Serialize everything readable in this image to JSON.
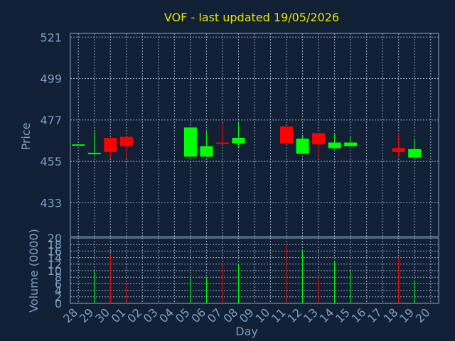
{
  "chart_data": [
    {
      "type": "candlestick",
      "title": "VOF - last updated 19/05/2026",
      "ylabel": "Price",
      "xlabel": "Day",
      "ylim": [
        415,
        523
      ],
      "yticks": [
        521,
        499,
        477,
        455,
        433
      ],
      "grid": true,
      "colors": {
        "up": "#00ff00",
        "down": "#ff0000",
        "background": "#112035",
        "text": "#7c9fc4",
        "title": "#e6e600"
      },
      "x": [
        "28",
        "29",
        "30",
        "01",
        "02",
        "03",
        "04",
        "05",
        "06",
        "07",
        "08",
        "09",
        "10",
        "11",
        "12",
        "13",
        "14",
        "15",
        "16",
        "17",
        "18",
        "19",
        "20"
      ],
      "candles": [
        {
          "day": "28",
          "open": 464.0,
          "high": 464.0,
          "low": 464.0,
          "close": 464.0
        },
        {
          "day": "29",
          "open": 459.0,
          "high": 471.0,
          "low": 458.5,
          "close": 459.5
        },
        {
          "day": "30",
          "open": 467.5,
          "high": 467.5,
          "low": 456.5,
          "close": 460.0
        },
        {
          "day": "01",
          "open": 468.0,
          "high": 468.0,
          "low": 456.5,
          "close": 463.0
        },
        {
          "day": "05",
          "open": 457.5,
          "high": 473.0,
          "low": 457.5,
          "close": 473.0
        },
        {
          "day": "06",
          "open": 457.5,
          "high": 471.0,
          "low": 457.5,
          "close": 463.0
        },
        {
          "day": "07",
          "open": 465.0,
          "high": 475.5,
          "low": 464.0,
          "close": 464.5
        },
        {
          "day": "08",
          "open": 464.5,
          "high": 475.5,
          "low": 462.5,
          "close": 467.5
        },
        {
          "day": "11",
          "open": 473.5,
          "high": 473.5,
          "low": 464.5,
          "close": 464.5
        },
        {
          "day": "12",
          "open": 459.0,
          "high": 469.0,
          "low": 459.0,
          "close": 467.0
        },
        {
          "day": "13",
          "open": 470.0,
          "high": 470.0,
          "low": 457.0,
          "close": 464.0
        },
        {
          "day": "14",
          "open": 462.0,
          "high": 470.0,
          "low": 461.5,
          "close": 465.0
        },
        {
          "day": "15",
          "open": 463.0,
          "high": 468.5,
          "low": 463.0,
          "close": 465.0
        },
        {
          "day": "18",
          "open": 462.0,
          "high": 470.0,
          "low": 457.5,
          "close": 460.0
        },
        {
          "day": "19",
          "open": 457.0,
          "high": 466.5,
          "low": 457.0,
          "close": 461.5
        }
      ]
    },
    {
      "type": "bar",
      "ylabel": "Volume (0000)",
      "ylim": [
        0,
        20
      ],
      "yticks": [
        20,
        18,
        16,
        14,
        12,
        10,
        8,
        6,
        4,
        2,
        0
      ],
      "grid": true,
      "volumes": [
        {
          "day": "28",
          "value": 0,
          "direction": "flat"
        },
        {
          "day": "29",
          "value": 10,
          "direction": "up"
        },
        {
          "day": "30",
          "value": 15,
          "direction": "down"
        },
        {
          "day": "01",
          "value": 6,
          "direction": "down"
        },
        {
          "day": "05",
          "value": 8,
          "direction": "up"
        },
        {
          "day": "06",
          "value": 8,
          "direction": "up"
        },
        {
          "day": "07",
          "value": 12,
          "direction": "down"
        },
        {
          "day": "08",
          "value": 12,
          "direction": "up"
        },
        {
          "day": "11",
          "value": 18.5,
          "direction": "down"
        },
        {
          "day": "12",
          "value": 16,
          "direction": "up"
        },
        {
          "day": "13",
          "value": 8,
          "direction": "down"
        },
        {
          "day": "14",
          "value": 13,
          "direction": "up"
        },
        {
          "day": "15",
          "value": 10,
          "direction": "up"
        },
        {
          "day": "18",
          "value": 14,
          "direction": "down"
        },
        {
          "day": "19",
          "value": 7,
          "direction": "up"
        }
      ]
    }
  ]
}
